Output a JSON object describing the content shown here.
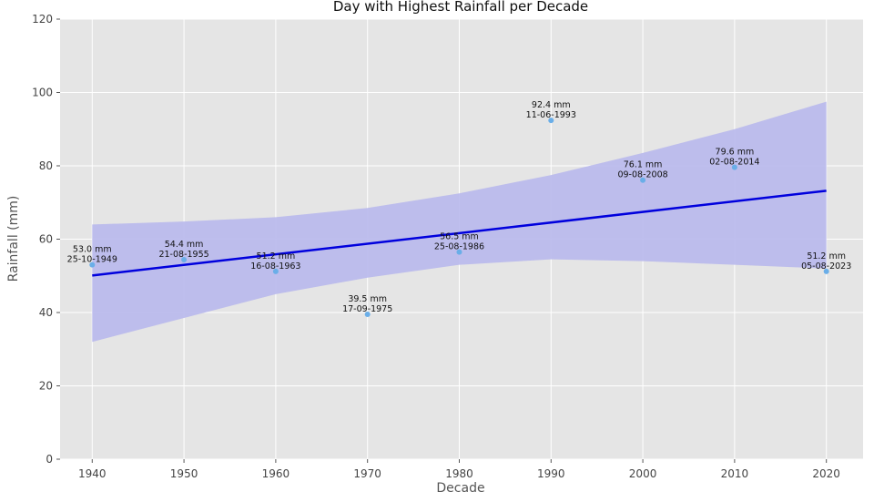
{
  "chart_data": {
    "type": "scatter",
    "title": "Day with Highest Rainfall per Decade",
    "xlabel": "Decade",
    "ylabel": "Rainfall (mm)",
    "xlim": [
      1936.5,
      2024
    ],
    "ylim": [
      0,
      120
    ],
    "xticks": [
      1940,
      1950,
      1960,
      1970,
      1980,
      1990,
      2000,
      2010,
      2020
    ],
    "yticks": [
      0,
      20,
      40,
      60,
      80,
      100,
      120
    ],
    "grid": true,
    "points": [
      {
        "x": 1940,
        "y": 53.0,
        "label": "53.0 mm",
        "date": "25-10-1949"
      },
      {
        "x": 1950,
        "y": 54.4,
        "label": "54.4 mm",
        "date": "21-08-1955"
      },
      {
        "x": 1960,
        "y": 51.2,
        "label": "51.2 mm",
        "date": "16-08-1963"
      },
      {
        "x": 1970,
        "y": 39.5,
        "label": "39.5 mm",
        "date": "17-09-1975"
      },
      {
        "x": 1980,
        "y": 56.5,
        "label": "56.5 mm",
        "date": "25-08-1986"
      },
      {
        "x": 1990,
        "y": 92.4,
        "label": "92.4 mm",
        "date": "11-06-1993"
      },
      {
        "x": 2000,
        "y": 76.1,
        "label": "76.1 mm",
        "date": "09-08-2008"
      },
      {
        "x": 2010,
        "y": 79.6,
        "label": "79.6 mm",
        "date": "02-08-2014"
      },
      {
        "x": 2020,
        "y": 51.2,
        "label": "51.2 mm",
        "date": "05-08-2023"
      }
    ],
    "trend_line": {
      "x": [
        1940,
        2020
      ],
      "y": [
        50.1,
        73.2
      ]
    },
    "confidence_band": {
      "x": [
        1940,
        1950,
        1960,
        1970,
        1980,
        1990,
        2000,
        2010,
        2020
      ],
      "upper": [
        64.0,
        64.8,
        66.0,
        68.5,
        72.5,
        77.5,
        83.5,
        90.0,
        97.5
      ],
      "lower": [
        32.0,
        38.5,
        45.0,
        49.5,
        53.0,
        54.5,
        54.0,
        53.0,
        52.0
      ]
    },
    "colors": {
      "background": "#e5e5e5",
      "grid": "#ffffff",
      "trend": "#0000dd",
      "band": "#b8b8ec",
      "points": "#6aaee8"
    }
  }
}
